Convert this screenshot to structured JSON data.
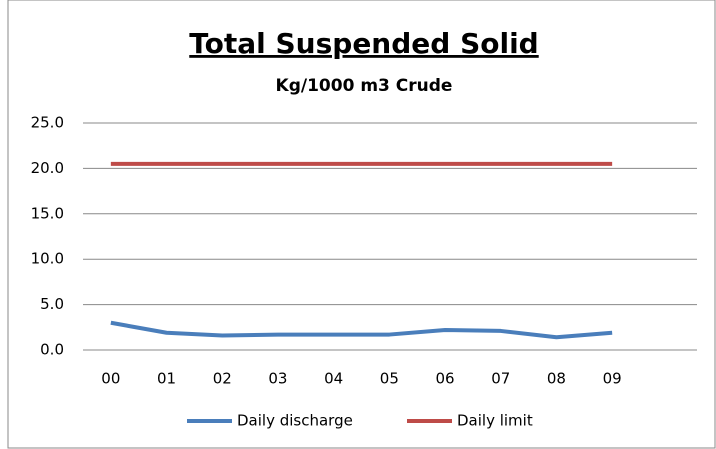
{
  "chart_data": {
    "type": "line",
    "title": "Total Suspended Solid",
    "subtitle": "Kg/1000 m3 Crude",
    "categories": [
      "00",
      "01",
      "02",
      "03",
      "04",
      "05",
      "06",
      "07",
      "08",
      "09"
    ],
    "series": [
      {
        "name": "Daily discharge",
        "color": "#4a7ebb",
        "values": [
          3.0,
          1.9,
          1.6,
          1.7,
          1.7,
          1.7,
          2.2,
          2.1,
          1.4,
          1.9
        ]
      },
      {
        "name": "Daily limit",
        "color": "#be4b48",
        "values": [
          20.5,
          20.5,
          20.5,
          20.5,
          20.5,
          20.5,
          20.5,
          20.5,
          20.5,
          20.5
        ]
      }
    ],
    "ylim": [
      0,
      25
    ],
    "yticks": [
      {
        "value": 0,
        "label": "0.0"
      },
      {
        "value": 5,
        "label": "5.0"
      },
      {
        "value": 10,
        "label": "10.0"
      },
      {
        "value": 15,
        "label": "15.0"
      },
      {
        "value": 20,
        "label": "20.0"
      },
      {
        "value": 25,
        "label": "25.0"
      }
    ],
    "grid": true,
    "legend": "bottom"
  }
}
